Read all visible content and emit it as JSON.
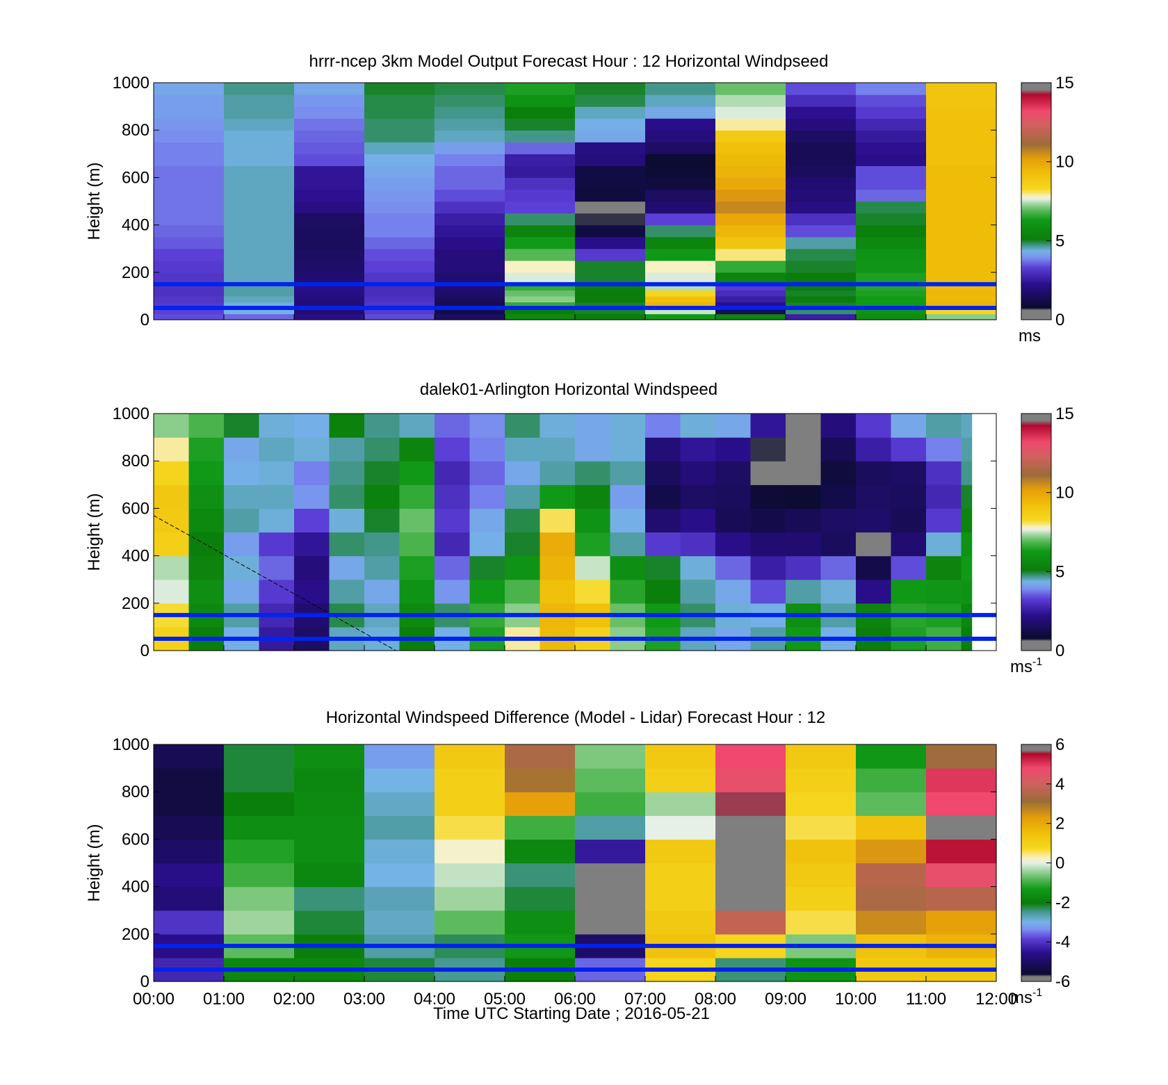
{
  "chart_data": [
    {
      "type": "heatmap",
      "title": "hrrr-ncep 3km Model Output   Forecast Hour : 12 Horizontal Windpseed",
      "ylabel": "Height (m)",
      "yticks": [
        "0",
        "200",
        "400",
        "600",
        "800",
        "1000"
      ],
      "ylim": [
        0,
        1000
      ],
      "xlim": [
        0,
        12
      ],
      "xticks": [
        "",
        "",
        "",
        "",
        "",
        "",
        "",
        "",
        "",
        "",
        "",
        "",
        ""
      ],
      "grid": false,
      "colorbar": {
        "ticks": [
          "0",
          "5",
          "10",
          "15"
        ],
        "range": [
          0,
          15
        ],
        "unit": "ms",
        "unit_sup": ""
      },
      "reference_lines_m": [
        50,
        150
      ],
      "levels_m": [
        0,
        25,
        50,
        75,
        100,
        125,
        150,
        200,
        250,
        300,
        350,
        400,
        450,
        500,
        550,
        600,
        650,
        700,
        750,
        800,
        850,
        900,
        950,
        1000
      ],
      "columns_hours": [
        0,
        1,
        2,
        3,
        4,
        5,
        6,
        7,
        8,
        9,
        10,
        11
      ],
      "values": [
        [
          3.4,
          3.6,
          2.2,
          3.4,
          1.6,
          5.6,
          5.2,
          6.2,
          5.4,
          2.6,
          5.8,
          7.2
        ],
        [
          3.3,
          4.3,
          1.8,
          3.2,
          1.2,
          5.2,
          5.0,
          7.5,
          1.4,
          4.8,
          6.0,
          8.3
        ],
        [
          3.2,
          4.4,
          1.9,
          3.1,
          1.3,
          6.6,
          5.0,
          9.6,
          2.2,
          5.0,
          6.2,
          9.6
        ],
        [
          3.1,
          4.5,
          2.0,
          3.0,
          1.5,
          7.2,
          5.1,
          9.2,
          2.6,
          5.1,
          6.3,
          9.4
        ],
        [
          3.0,
          4.6,
          2.1,
          2.9,
          1.7,
          7.0,
          5.1,
          8.4,
          2.9,
          5.0,
          6.4,
          9.5
        ],
        [
          3.0,
          4.6,
          2.2,
          2.9,
          1.8,
          6.6,
          5.2,
          7.4,
          3.2,
          5.1,
          6.5,
          9.4
        ],
        [
          3.1,
          4.5,
          1.8,
          3.1,
          1.8,
          7.6,
          5.0,
          7.6,
          5.4,
          5.1,
          6.4,
          9.3
        ],
        [
          3.2,
          4.5,
          1.7,
          3.3,
          2.0,
          7.8,
          5.0,
          7.8,
          6.6,
          5.0,
          6.1,
          9.3
        ],
        [
          3.3,
          4.5,
          1.6,
          3.4,
          2.0,
          6.9,
          3.2,
          6.2,
          8.0,
          4.9,
          6.0,
          9.3
        ],
        [
          3.5,
          4.5,
          1.5,
          3.6,
          2.2,
          6.3,
          2.2,
          5.4,
          9.0,
          4.6,
          5.6,
          9.3
        ],
        [
          3.6,
          4.5,
          1.5,
          3.8,
          2.4,
          5.4,
          1.1,
          4.8,
          9.5,
          3.4,
          5.2,
          9.3
        ],
        [
          3.7,
          4.5,
          1.6,
          3.8,
          2.6,
          4.8,
          0.7,
          3.3,
          9.9,
          3.0,
          5.0,
          9.3
        ],
        [
          3.7,
          4.5,
          2.1,
          3.9,
          3.0,
          3.3,
          0.4,
          1.8,
          10.6,
          2.1,
          4.9,
          9.3
        ],
        [
          3.7,
          4.5,
          2.3,
          4.0,
          3.4,
          3.2,
          1.0,
          1.6,
          10.3,
          1.9,
          3.6,
          9.3
        ],
        [
          3.7,
          4.5,
          2.4,
          4.1,
          3.6,
          3.0,
          1.1,
          1.0,
          9.9,
          1.8,
          3.4,
          9.3
        ],
        [
          3.7,
          4.5,
          2.4,
          4.2,
          3.6,
          2.5,
          1.1,
          0.9,
          9.6,
          1.5,
          3.4,
          9.3
        ],
        [
          3.8,
          4.4,
          3.4,
          4.3,
          3.8,
          2.6,
          2.0,
          0.8,
          9.4,
          1.4,
          2.2,
          9.2
        ],
        [
          3.8,
          4.4,
          3.5,
          4.5,
          4.1,
          3.6,
          2.1,
          1.6,
          9.2,
          1.4,
          2.3,
          9.2
        ],
        [
          3.9,
          4.4,
          3.6,
          4.8,
          4.5,
          4.7,
          4.2,
          2.0,
          8.8,
          1.6,
          2.5,
          9.2
        ],
        [
          4.0,
          4.5,
          3.7,
          4.8,
          4.6,
          5.0,
          4.3,
          2.2,
          7.9,
          2.0,
          2.8,
          9.2
        ],
        [
          4.1,
          4.6,
          3.9,
          4.9,
          4.7,
          5.2,
          4.5,
          4.2,
          7.6,
          2.3,
          3.2,
          9.1
        ],
        [
          4.1,
          4.6,
          4.0,
          4.9,
          4.8,
          6.0,
          4.9,
          4.5,
          7.4,
          2.9,
          3.4,
          9.0
        ],
        [
          4.2,
          4.7,
          4.2,
          5.0,
          4.9,
          6.4,
          5.0,
          4.7,
          7.0,
          3.4,
          3.8,
          9.0
        ]
      ]
    },
    {
      "type": "heatmap",
      "title": "dalek01-Arlington  Horizontal Windspeed",
      "ylabel": "Height (m)",
      "yticks": [
        "0",
        "200",
        "400",
        "600",
        "800",
        "1000"
      ],
      "ylim": [
        0,
        1000
      ],
      "xlim": [
        0,
        12
      ],
      "xticks": [
        "",
        "",
        "",
        "",
        "",
        "",
        "",
        "",
        "",
        "",
        "",
        "",
        ""
      ],
      "grid": false,
      "colorbar": {
        "ticks": [
          "0",
          "5",
          "10",
          "15"
        ],
        "range": [
          0,
          15
        ],
        "unit": "ms",
        "unit_sup": "-1"
      },
      "reference_lines_m": [
        50,
        150
      ],
      "data_end_hour": 11.65,
      "levels_m": [
        0,
        100,
        200,
        300,
        400,
        500,
        600,
        700,
        800,
        900,
        1000
      ],
      "columns_hours": [
        0,
        0.5,
        1,
        1.5,
        2,
        2.5,
        3,
        3.5,
        4,
        4.5,
        5,
        5.5,
        6,
        6.5,
        7,
        7.5,
        8,
        8.5,
        9,
        9.5,
        10,
        10.5,
        11,
        11.5
      ],
      "values": [
        [
          8.5,
          5.2,
          4.3,
          2.5,
          1.6,
          4.5,
          4.4,
          5.2,
          4.3,
          6.4,
          7.9,
          9.4,
          8.5,
          7.2,
          6.4,
          4.5,
          4.2,
          4.6,
          6.2,
          4.3,
          5.2,
          6.4,
          6.7,
          5.2
        ],
        [
          8.2,
          5.6,
          4.6,
          2.8,
          1.8,
          4.9,
          4.5,
          5.6,
          4.8,
          6.6,
          7.2,
          9.5,
          9.2,
          7.0,
          6.2,
          4.8,
          4.4,
          4.3,
          5.8,
          4.6,
          5.4,
          6.5,
          6.4,
          5.5
        ],
        [
          7.6,
          5.8,
          4.2,
          3.2,
          2.2,
          4.6,
          4.2,
          6.0,
          4.0,
          6.2,
          6.8,
          9.2,
          8.2,
          6.5,
          5.2,
          4.6,
          4.2,
          3.4,
          4.6,
          4.4,
          2.2,
          6.2,
          6.1,
          6.0
        ],
        [
          7.4,
          5.4,
          4.4,
          3.6,
          2.0,
          4.2,
          4.6,
          6.4,
          3.6,
          5.0,
          6.0,
          9.6,
          7.5,
          5.8,
          5.0,
          4.4,
          3.6,
          2.6,
          3.0,
          3.6,
          1.2,
          3.4,
          5.4,
          6.3
        ],
        [
          8.6,
          5.2,
          4.1,
          3.2,
          2.4,
          4.8,
          4.7,
          6.8,
          2.8,
          4.3,
          5.0,
          9.8,
          6.4,
          4.6,
          3.2,
          3.0,
          2.2,
          1.8,
          1.8,
          1.5,
          0.6,
          1.8,
          4.4,
          6.0
        ],
        [
          8.8,
          5.6,
          4.6,
          4.4,
          3.3,
          4.4,
          5.0,
          7.0,
          3.2,
          4.2,
          4.9,
          8.1,
          6.0,
          4.3,
          1.8,
          2.2,
          1.4,
          1.2,
          1.4,
          1.6,
          1.7,
          1.4,
          3.2,
          5.4
        ],
        [
          8.9,
          5.9,
          4.5,
          4.5,
          4.0,
          4.8,
          5.3,
          6.6,
          3.0,
          3.8,
          4.6,
          6.2,
          5.4,
          4.1,
          1.2,
          1.6,
          1.5,
          0.9,
          0.8,
          1.2,
          1.6,
          1.5,
          2.8,
          5.0
        ],
        [
          8.4,
          6.2,
          4.3,
          4.4,
          3.8,
          4.7,
          5.0,
          6.2,
          2.8,
          3.6,
          4.2,
          4.6,
          4.8,
          4.6,
          1.5,
          1.9,
          1.6,
          0.6,
          0.5,
          1.0,
          1.5,
          1.6,
          3.0,
          4.7
        ],
        [
          7.9,
          6.4,
          4.2,
          4.5,
          4.4,
          4.6,
          4.8,
          5.4,
          3.3,
          3.8,
          4.5,
          4.5,
          4.2,
          4.4,
          1.9,
          2.4,
          2.2,
          0.7,
          0.4,
          1.4,
          2.6,
          3.2,
          3.8,
          4.6
        ],
        [
          7.2,
          6.8,
          5.0,
          4.4,
          4.3,
          5.3,
          4.7,
          4.5,
          3.6,
          3.9,
          4.8,
          4.4,
          4.2,
          4.4,
          3.8,
          4.4,
          4.2,
          2.4,
          0.6,
          2.0,
          3.2,
          4.2,
          4.6,
          4.5
        ],
        [
          7.0,
          7.2,
          5.2,
          4.6,
          4.8,
          5.6,
          4.9,
          4.4,
          4.0,
          4.2,
          4.9,
          4.5,
          4.4,
          4.6,
          4.6,
          4.6,
          4.6,
          4.4,
          1.4,
          2.8,
          4.4,
          4.6,
          4.6,
          4.6
        ]
      ]
    },
    {
      "type": "heatmap",
      "title": "Horizontal Windspeed Difference (Model - Lidar) Forecast Hour : 12",
      "xlabel": "Time UTC  Starting Date ; 2016-05-21",
      "ylabel": "Height (m)",
      "yticks": [
        "0",
        "200",
        "400",
        "600",
        "800",
        "1000"
      ],
      "ylim": [
        0,
        1000
      ],
      "xlim": [
        0,
        12
      ],
      "xticks": [
        "00:00",
        "01:00",
        "02:00",
        "03:00",
        "04:00",
        "05:00",
        "06:00",
        "07:00",
        "08:00",
        "09:00",
        "10:00",
        "11:00",
        "12:00"
      ],
      "grid": false,
      "colorbar": {
        "ticks": [
          "6",
          "4",
          "2",
          "0",
          "-2",
          "-4",
          "-6"
        ],
        "range": [
          -6,
          6
        ],
        "unit": "ms",
        "unit_sup": "-1"
      },
      "reference_lines_m": [
        50,
        150
      ],
      "levels_m": [
        0,
        100,
        200,
        300,
        400,
        500,
        600,
        700,
        800,
        900,
        1000
      ],
      "columns_hours": [
        0,
        1,
        2,
        3,
        4,
        5,
        6,
        7,
        8,
        9,
        10,
        11
      ],
      "values": [
        [
          -4.2,
          -1.8,
          -1.8,
          -2.2,
          -2.5,
          -2.0,
          -3.6,
          0.8,
          -2.4,
          -1.5,
          1.2,
          1.2
        ],
        [
          -4.6,
          -0.8,
          -2.0,
          -2.6,
          -2.3,
          -1.4,
          -5.0,
          1.4,
          0.8,
          -0.6,
          1.4,
          1.8
        ],
        [
          -4.0,
          -0.4,
          -2.2,
          -2.8,
          -0.8,
          -1.6,
          -5.8,
          1.2,
          3.8,
          0.6,
          2.6,
          2.2
        ],
        [
          -4.8,
          -0.6,
          -2.4,
          -2.7,
          -0.4,
          -2.2,
          -6.0,
          1.0,
          -6.5,
          1.0,
          3.4,
          3.6
        ],
        [
          -4.6,
          -1.0,
          -1.8,
          -3.0,
          -0.2,
          -2.4,
          -6.5,
          1.0,
          -6.5,
          1.2,
          3.6,
          4.6
        ],
        [
          -5.0,
          -1.2,
          -1.6,
          -2.9,
          0.2,
          -1.8,
          -4.4,
          1.2,
          -6.5,
          1.4,
          2.4,
          5.4
        ],
        [
          -5.2,
          -1.6,
          -1.6,
          -2.6,
          0.6,
          -1.0,
          -2.6,
          0.0,
          -6.5,
          0.6,
          1.4,
          -6.5
        ],
        [
          -5.4,
          -2.0,
          -1.7,
          -2.8,
          1.0,
          2.2,
          -1.0,
          -0.4,
          5.6,
          0.8,
          -0.8,
          4.8
        ],
        [
          -5.4,
          -2.2,
          -1.8,
          -3.0,
          1.0,
          3.0,
          -0.8,
          1.0,
          4.6,
          1.0,
          -1.0,
          5.0
        ],
        [
          -5.2,
          -2.2,
          -1.6,
          -3.2,
          1.2,
          3.4,
          -0.6,
          1.2,
          4.8,
          1.2,
          -1.4,
          3.2
        ],
        [
          -5.0,
          -2.4,
          -1.4,
          -3.0,
          1.4,
          3.6,
          -0.4,
          1.2,
          5.0,
          1.2,
          -1.6,
          3.0
        ]
      ]
    }
  ],
  "colors": {
    "ref_line": "#0022ee",
    "speed_scale": [
      [
        0.0,
        "#7f7f7f"
      ],
      [
        0.04,
        "#7f7f7f"
      ],
      [
        0.05,
        "#0b0b2e"
      ],
      [
        0.15,
        "#2a0e8c"
      ],
      [
        0.22,
        "#5b3fd6"
      ],
      [
        0.26,
        "#7a8ef0"
      ],
      [
        0.29,
        "#74b3e6"
      ],
      [
        0.31,
        "#4a9a9a"
      ],
      [
        0.34,
        "#0a7d0a"
      ],
      [
        0.42,
        "#119a18"
      ],
      [
        0.46,
        "#55b855"
      ],
      [
        0.49,
        "#a6d7a6"
      ],
      [
        0.51,
        "#e7f0e7"
      ],
      [
        0.52,
        "#f8f1c4"
      ],
      [
        0.55,
        "#f6d820"
      ],
      [
        0.62,
        "#efbd08"
      ],
      [
        0.68,
        "#e59e0a"
      ],
      [
        0.74,
        "#9c6c3a"
      ],
      [
        0.82,
        "#d2605f"
      ],
      [
        0.88,
        "#f0486e"
      ],
      [
        0.95,
        "#b0092c"
      ],
      [
        0.97,
        "#7f7f7f"
      ],
      [
        1.0,
        "#7f7f7f"
      ]
    ],
    "diff_scale": [
      [
        0.0,
        "#7f7f7f"
      ],
      [
        0.02,
        "#7f7f7f"
      ],
      [
        0.03,
        "#0b0b2e"
      ],
      [
        0.12,
        "#2a0e8c"
      ],
      [
        0.18,
        "#5b3fd6"
      ],
      [
        0.22,
        "#7a8ef0"
      ],
      [
        0.25,
        "#74b3e6"
      ],
      [
        0.29,
        "#4a9a9a"
      ],
      [
        0.33,
        "#0a7d0a"
      ],
      [
        0.39,
        "#119a18"
      ],
      [
        0.43,
        "#55b855"
      ],
      [
        0.47,
        "#a6d7a6"
      ],
      [
        0.5,
        "#e7f0e7"
      ],
      [
        0.52,
        "#f8f1c4"
      ],
      [
        0.56,
        "#f6d820"
      ],
      [
        0.63,
        "#efbd08"
      ],
      [
        0.69,
        "#e59e0a"
      ],
      [
        0.76,
        "#9c6c3a"
      ],
      [
        0.84,
        "#d2605f"
      ],
      [
        0.9,
        "#f0486e"
      ],
      [
        0.96,
        "#b0092c"
      ],
      [
        0.975,
        "#7f7f7f"
      ],
      [
        1.0,
        "#7f7f7f"
      ]
    ]
  }
}
